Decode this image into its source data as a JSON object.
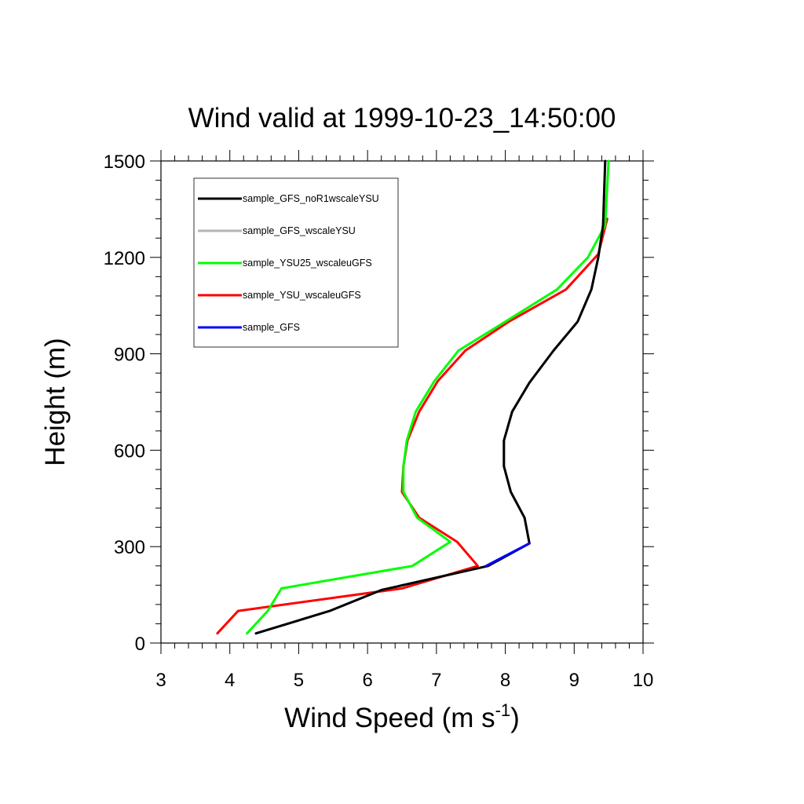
{
  "chart_data": {
    "type": "line",
    "title": "Wind valid at 1999-10-23_14:50:00",
    "xlabel": "Wind Speed (m s",
    "xlabel_exponent": "-1",
    "xlabel_suffix": ")",
    "ylabel": "Height (m)",
    "xlim": [
      3,
      10
    ],
    "ylim": [
      0,
      1500
    ],
    "x_ticks": [
      3,
      4,
      5,
      6,
      7,
      8,
      9,
      10
    ],
    "y_ticks": [
      0,
      300,
      600,
      900,
      1200,
      1500
    ],
    "grid": false,
    "legend_position": "top-left",
    "series": [
      {
        "name": "sample_GFS_noR1wscaleYSU",
        "color": "#000000",
        "x": [
          4.38,
          5.45,
          6.2,
          7.75,
          8.35,
          8.28,
          8.08,
          7.98,
          7.98,
          8.1,
          8.35,
          8.7,
          9.05,
          9.25,
          9.35,
          9.42,
          9.45
        ],
        "y": [
          30,
          100,
          165,
          240,
          310,
          390,
          470,
          550,
          630,
          720,
          810,
          910,
          1000,
          1100,
          1200,
          1300,
          1500
        ]
      },
      {
        "name": "sample_GFS_wscaleYSU",
        "color": "#b4b4b4",
        "x": [
          4.38,
          5.45,
          6.2,
          7.75,
          8.35,
          8.28,
          8.08,
          7.98,
          7.98,
          8.1,
          8.35,
          8.7,
          9.05,
          9.25,
          9.35,
          9.42,
          9.45
        ],
        "y": [
          30,
          100,
          165,
          240,
          310,
          390,
          470,
          550,
          630,
          720,
          810,
          910,
          1000,
          1100,
          1200,
          1300,
          1500
        ]
      },
      {
        "name": "sample_YSU25_wscaleuGFS",
        "color": "#00ff00",
        "x": [
          4.25,
          4.55,
          4.75,
          6.65,
          7.2,
          6.72,
          6.52,
          6.52,
          6.57,
          6.7,
          6.97,
          7.32,
          8.0,
          8.75,
          9.2,
          9.45,
          9.5
        ],
        "y": [
          30,
          100,
          170,
          240,
          315,
          390,
          470,
          550,
          630,
          720,
          815,
          910,
          1000,
          1100,
          1200,
          1300,
          1500
        ]
      },
      {
        "name": "sample_YSU_wscaleuGFS",
        "color": "#ff0000",
        "x": [
          3.82,
          4.12,
          6.5,
          7.6,
          7.3,
          6.75,
          6.5,
          6.52,
          6.58,
          6.75,
          7.02,
          7.42,
          8.05,
          8.88,
          9.35,
          9.48
        ],
        "y": [
          30,
          100,
          170,
          240,
          315,
          390,
          470,
          550,
          630,
          720,
          815,
          910,
          1000,
          1100,
          1210,
          1320
        ]
      },
      {
        "name": "sample_GFS",
        "color": "#0000ff",
        "x": [
          7.72,
          8.35
        ],
        "y": [
          240,
          310
        ]
      }
    ]
  }
}
